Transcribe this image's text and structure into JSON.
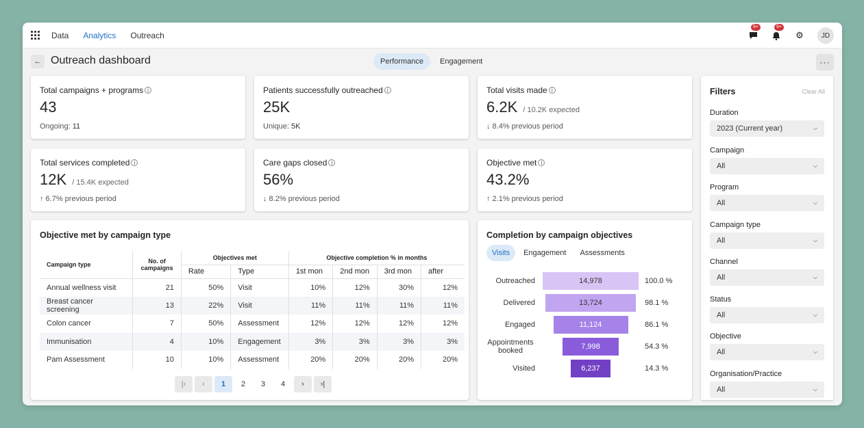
{
  "nav": {
    "items": [
      "Data",
      "Analytics",
      "Outreach"
    ],
    "active": "Analytics"
  },
  "topbar": {
    "messages_badge": "9+",
    "notifications_badge": "9+",
    "avatar_initials": "JD"
  },
  "header": {
    "title": "Outreach dashboard",
    "tabs": [
      "Performance",
      "Engagement"
    ],
    "active_tab": "Performance",
    "more": "···"
  },
  "kpis": [
    {
      "label": "Total campaigns + programs",
      "value": "43",
      "sub": "",
      "foot": "Ongoing:",
      "foot_value": "11",
      "trend": "none"
    },
    {
      "label": "Patients successfully outreached",
      "value": "25K",
      "sub": "",
      "foot": "Unique:",
      "foot_value": "5K",
      "trend": "none"
    },
    {
      "label": "Total visits made",
      "value": "6.2K",
      "sub": "/ 10.2K expected",
      "foot": "↓ 8.4% previous period",
      "foot_value": "",
      "trend": "down"
    },
    {
      "label": "Total services completed",
      "value": "12K",
      "sub": "/ 15.4K expected",
      "foot": "↑ 6.7% previous period",
      "foot_value": "",
      "trend": "up"
    },
    {
      "label": "Care gaps closed",
      "value": "56%",
      "sub": "",
      "foot": "↓ 8.2% previous period",
      "foot_value": "",
      "trend": "down"
    },
    {
      "label": "Objective met",
      "value": "43.2%",
      "sub": "",
      "foot": "↑ 2.1% previous period",
      "foot_value": "",
      "trend": "up"
    }
  ],
  "objective_table": {
    "title": "Objective met by campaign type",
    "headers": {
      "campaign_type": "Campaign type",
      "no_campaigns": "No. of campaigns",
      "objectives_met": "Objectives met",
      "completion": "Objective completion % in months",
      "rate": "Rate",
      "type": "Type",
      "m1": "1st mon",
      "m2": "2nd mon",
      "m3": "3rd mon",
      "after": "after"
    },
    "rows": [
      {
        "name": "Annual wellness visit",
        "count": "21",
        "rate": "50%",
        "type": "Visit",
        "m1": "10%",
        "m2": "12%",
        "m3": "30%",
        "after": "12%"
      },
      {
        "name": "Breast cancer screening",
        "count": "13",
        "rate": "22%",
        "type": "Visit",
        "m1": "11%",
        "m2": "11%",
        "m3": "11%",
        "after": "11%"
      },
      {
        "name": "Colon cancer",
        "count": "7",
        "rate": "50%",
        "type": "Assessment",
        "m1": "12%",
        "m2": "12%",
        "m3": "12%",
        "after": "12%"
      },
      {
        "name": "Immunisation",
        "count": "4",
        "rate": "10%",
        "type": "Engagement",
        "m1": "3%",
        "m2": "3%",
        "m3": "3%",
        "after": "3%"
      },
      {
        "name": "Pam Assessment",
        "count": "10",
        "rate": "10%",
        "type": "Assessment",
        "m1": "20%",
        "m2": "20%",
        "m3": "20%",
        "after": "20%"
      }
    ],
    "pagination": {
      "first": "|‹",
      "prev": "‹",
      "pages": [
        "1",
        "2",
        "3",
        "4"
      ],
      "active": "1",
      "next": "›",
      "last": "›|"
    }
  },
  "completion": {
    "title": "Completion by campaign objectives",
    "tabs": [
      "Visits",
      "Engagement",
      "Assessments"
    ],
    "active_tab": "Visits",
    "funnel": [
      {
        "label": "Outreached",
        "value": "14,978",
        "pct": "100.0 %",
        "fraction": 1.0,
        "color": "#d9c5f5",
        "text_color": "#333333"
      },
      {
        "label": "Delivered",
        "value": "13,724",
        "pct": "98.1 %",
        "fraction": 0.944,
        "color": "#c2a5f0",
        "text_color": "#333333"
      },
      {
        "label": "Engaged",
        "value": "11,124",
        "pct": "86.1 %",
        "fraction": 0.777,
        "color": "#a583e8",
        "text_color": "#ffffff"
      },
      {
        "label": "Appointments booked",
        "value": "7,998",
        "pct": "54.3 %",
        "fraction": 0.589,
        "color": "#8a5cdb",
        "text_color": "#ffffff"
      },
      {
        "label": "Visited",
        "value": "6,237",
        "pct": "14.3 %",
        "fraction": 0.411,
        "color": "#7140c4",
        "text_color": "#ffffff"
      }
    ]
  },
  "filters": {
    "title": "Filters",
    "clear": "Clear All",
    "groups": [
      {
        "label": "Duration",
        "value": "2023 (Current year)"
      },
      {
        "label": "Campaign",
        "value": "All"
      },
      {
        "label": "Program",
        "value": "All"
      },
      {
        "label": "Campaign type",
        "value": "All"
      },
      {
        "label": "Channel",
        "value": "All"
      },
      {
        "label": "Status",
        "value": "All"
      },
      {
        "label": "Objective",
        "value": "All"
      },
      {
        "label": "Organisation/Practice",
        "value": "All"
      }
    ]
  }
}
